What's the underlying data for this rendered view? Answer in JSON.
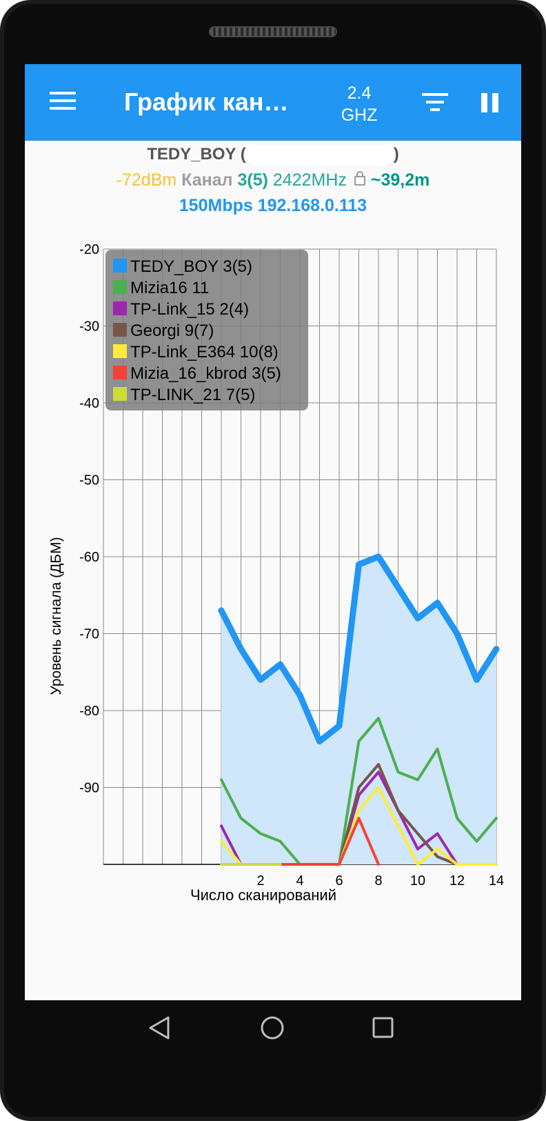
{
  "app_bar": {
    "title": "График кан…",
    "band_line1": "2.4",
    "band_line2": "GHZ"
  },
  "connection": {
    "ssid": "TEDY_BOY",
    "ssid_open": "(",
    "ssid_close": ")",
    "signal": "-72dBm",
    "channel_label": "Канал",
    "channel": "3(5)",
    "frequency": "2422MHz",
    "distance": "~39,2m",
    "speed": "150Mbps",
    "ip": "192.168.0.113",
    "colors": {
      "signal": "#fbc02d",
      "channel": "#26a69a",
      "distance": "#009688",
      "speed": "#2196f3"
    }
  },
  "chart_data": {
    "type": "area",
    "ylabel": "Уровень сигнала (ДБМ)",
    "xlabel": "Число сканирований",
    "y_ticks": [
      "-20",
      "-30",
      "-40",
      "-50",
      "-60",
      "-70",
      "-80",
      "-90"
    ],
    "x_ticks": [
      "2",
      "4",
      "6",
      "8",
      "10",
      "12",
      "14"
    ],
    "ylim": [
      -100,
      -20
    ],
    "xlim": [
      -6,
      14
    ],
    "grid": true,
    "legend_position": "top-left",
    "x": [
      0,
      1,
      2,
      3,
      4,
      5,
      6,
      7,
      8,
      9,
      10,
      11,
      12,
      13,
      14
    ],
    "series": [
      {
        "name": "TEDY_BOY 3(5)",
        "color": "#2196f3",
        "fill": true,
        "values": [
          -67,
          -72,
          -76,
          -74,
          -78,
          -84,
          -82,
          -61,
          -60,
          -64,
          -68,
          -66,
          -70,
          -76,
          -72
        ]
      },
      {
        "name": "Mizia16 11",
        "color": "#4caf50",
        "values": [
          -89,
          -94,
          -96,
          -97,
          -100,
          -100,
          -100,
          -84,
          -81,
          -88,
          -89,
          -85,
          -94,
          -97,
          -94
        ]
      },
      {
        "name": "TP-Link_15 2(4)",
        "color": "#9c27b0",
        "values": [
          -95,
          -100,
          -100,
          -100,
          -100,
          -100,
          -100,
          -91,
          -88,
          -93,
          -98,
          -96,
          -100,
          -100,
          -100
        ]
      },
      {
        "name": "Georgi 9(7)",
        "color": "#795548",
        "values": [
          null,
          null,
          null,
          null,
          null,
          null,
          -100,
          -90,
          -87,
          -93,
          -96,
          -99,
          -100,
          -100,
          -100
        ]
      },
      {
        "name": "TP-Link_E364 10(8)",
        "color": "#ffeb3b",
        "values": [
          -97,
          -100,
          -100,
          -100,
          -100,
          -100,
          -100,
          -93,
          -90,
          -95,
          -100,
          -98,
          -100,
          -100,
          -100
        ]
      },
      {
        "name": "Mizia_16_kbrod 3(5)",
        "color": "#f44336",
        "values": [
          null,
          null,
          null,
          -100,
          -100,
          -100,
          -100,
          -94,
          -100,
          null,
          null,
          null,
          null,
          null,
          null
        ]
      },
      {
        "name": "TP-LINK_21 7(5)",
        "color": "#cddc39",
        "values": [
          -100,
          -100,
          -100,
          -100,
          null,
          null,
          null,
          null,
          null,
          null,
          null,
          null,
          null,
          null,
          null
        ]
      }
    ]
  }
}
